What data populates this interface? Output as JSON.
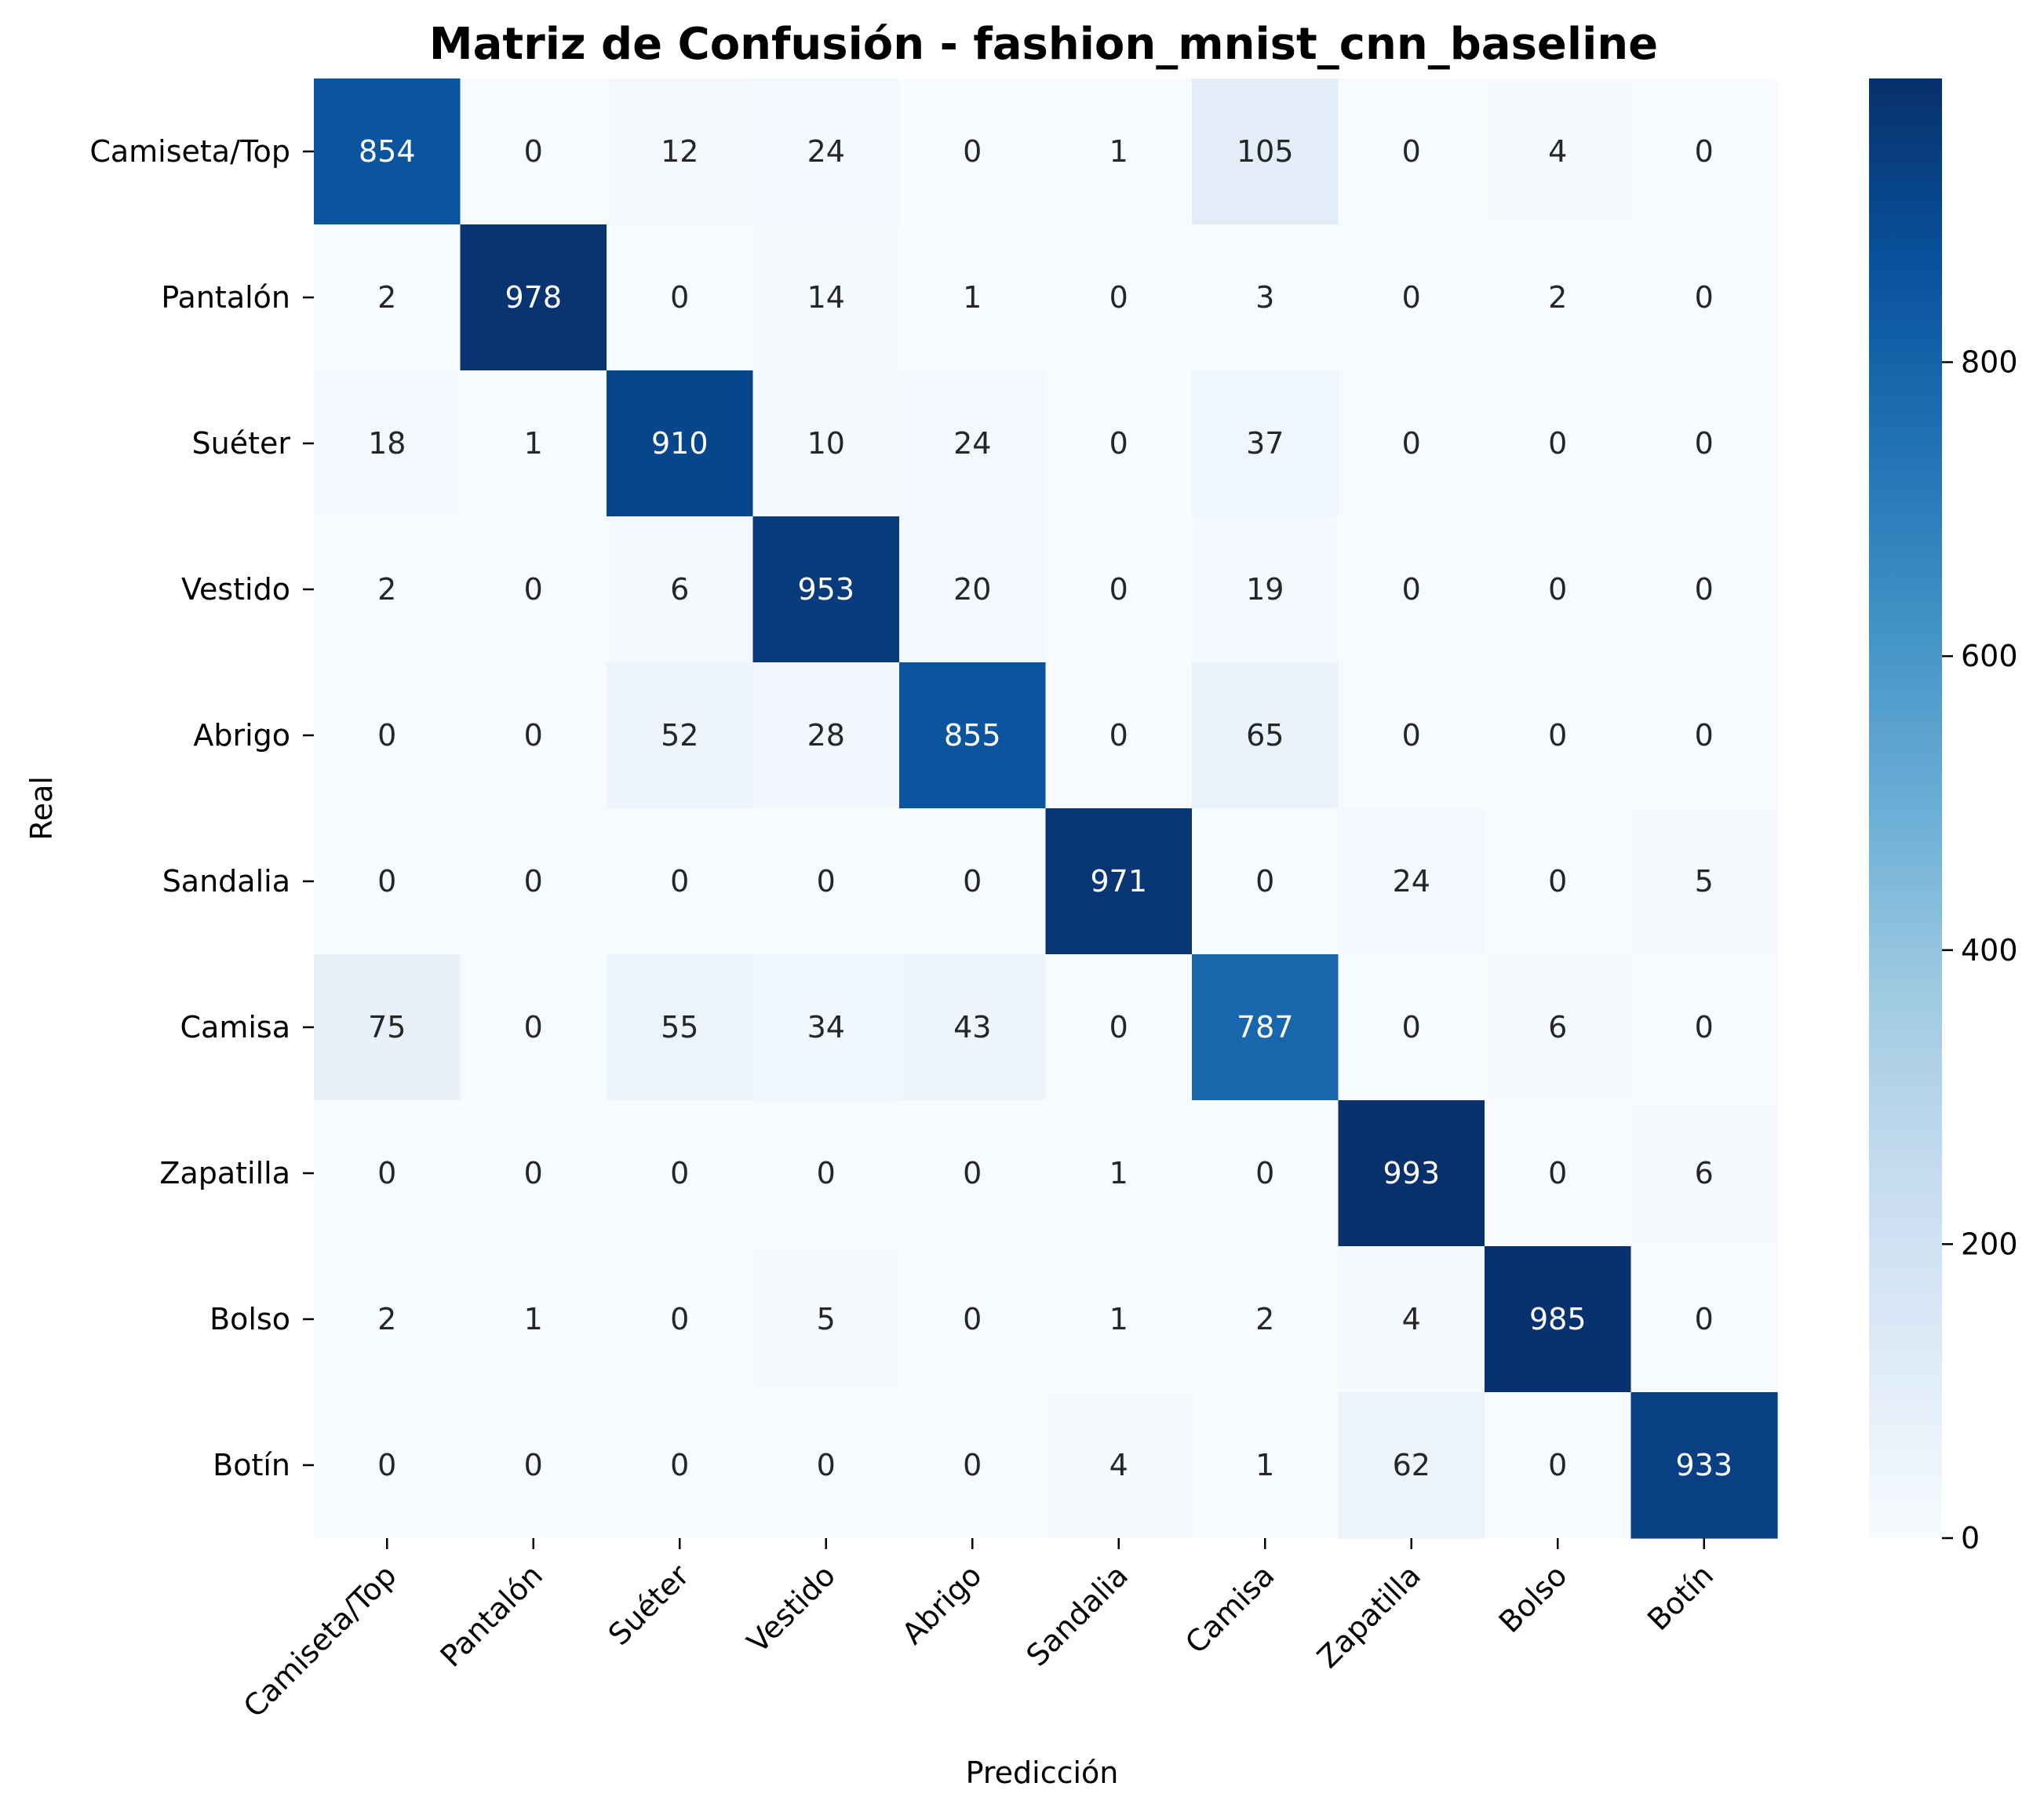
{
  "chart_data": {
    "type": "heatmap",
    "title": "Matriz de Confusión - fashion_mnist_cnn_baseline",
    "xlabel": "Predicción",
    "ylabel": "Real",
    "row_labels": [
      "Camiseta/Top",
      "Pantalón",
      "Suéter",
      "Vestido",
      "Abrigo",
      "Sandalia",
      "Camisa",
      "Zapatilla",
      "Bolso",
      "Botín"
    ],
    "col_labels": [
      "Camiseta/Top",
      "Pantalón",
      "Suéter",
      "Vestido",
      "Abrigo",
      "Sandalia",
      "Camisa",
      "Zapatilla",
      "Bolso",
      "Botín"
    ],
    "values": [
      [
        854,
        0,
        12,
        24,
        0,
        1,
        105,
        0,
        4,
        0
      ],
      [
        2,
        978,
        0,
        14,
        1,
        0,
        3,
        0,
        2,
        0
      ],
      [
        18,
        1,
        910,
        10,
        24,
        0,
        37,
        0,
        0,
        0
      ],
      [
        2,
        0,
        6,
        953,
        20,
        0,
        19,
        0,
        0,
        0
      ],
      [
        0,
        0,
        52,
        28,
        855,
        0,
        65,
        0,
        0,
        0
      ],
      [
        0,
        0,
        0,
        0,
        0,
        971,
        0,
        24,
        0,
        5
      ],
      [
        75,
        0,
        55,
        34,
        43,
        0,
        787,
        0,
        6,
        0
      ],
      [
        0,
        0,
        0,
        0,
        0,
        1,
        0,
        993,
        0,
        6
      ],
      [
        2,
        1,
        0,
        5,
        0,
        1,
        2,
        4,
        985,
        0
      ],
      [
        0,
        0,
        0,
        0,
        0,
        4,
        1,
        62,
        0,
        933
      ]
    ],
    "colormap": "Blues",
    "colormap_stops": [
      "#f7fbff",
      "#deebf7",
      "#c6dbef",
      "#9ecae1",
      "#6baed6",
      "#4292c6",
      "#2171b5",
      "#08519c",
      "#08306b"
    ],
    "color_range": [
      0,
      993
    ],
    "colorbar_ticks": [
      "0",
      "200",
      "400",
      "600",
      "800"
    ]
  }
}
